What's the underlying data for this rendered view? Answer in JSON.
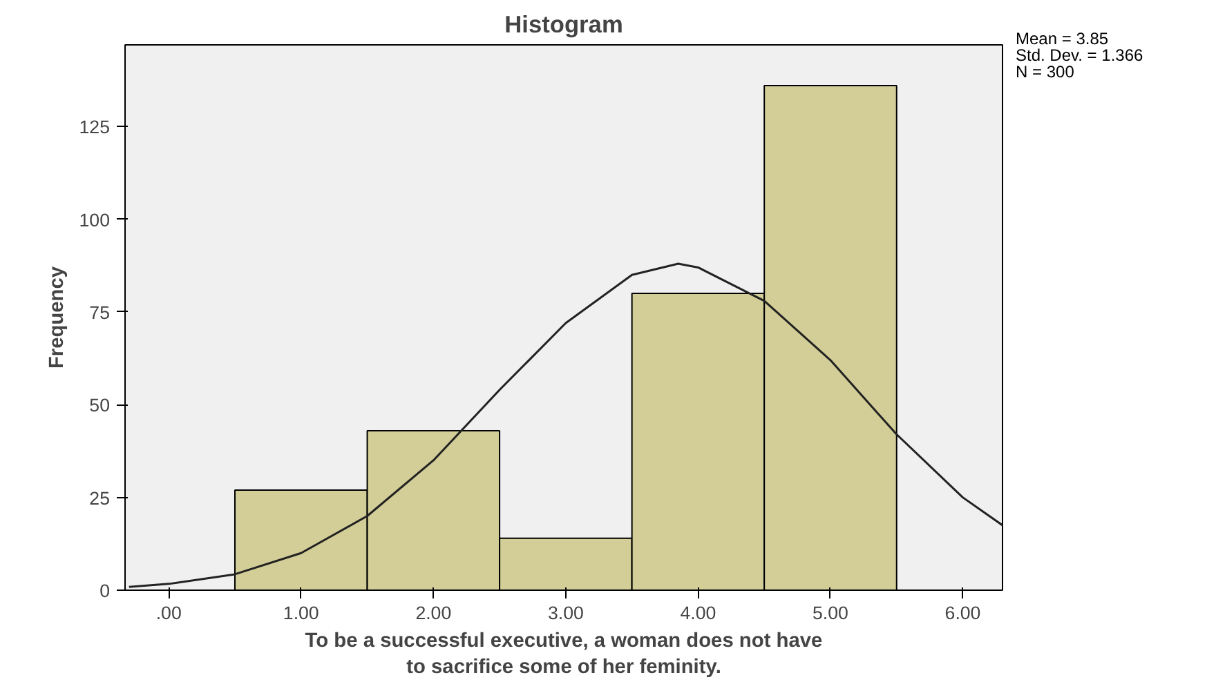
{
  "chart_data": {
    "type": "histogram",
    "title": "Histogram",
    "xlabel": "To be a successful executive, a woman does not have to sacrifice some of her feminity.",
    "ylabel": "Frequency",
    "bins": [
      0.5,
      1.5,
      2.5,
      3.5,
      4.5,
      5.5
    ],
    "values": [
      27,
      43,
      14,
      80,
      136
    ],
    "color": "#d3ce97",
    "series": [
      {
        "type": "line",
        "color": "#222222",
        "x": [
          -0.3,
          0,
          0.5,
          1,
          1.5,
          2,
          2.5,
          3,
          3.5,
          3.85,
          4,
          4.5,
          5,
          5.5,
          6,
          6.3
        ],
        "values": [
          0.9,
          1.7,
          4.3,
          10,
          20,
          35,
          54,
          72,
          85,
          88,
          87,
          78,
          62,
          42,
          25,
          17.5
        ]
      }
    ],
    "xlim": [
      -0.33,
      6.3
    ],
    "ylim": [
      0,
      147
    ],
    "xticks": [
      {
        "value": 0,
        "label": ".00"
      },
      {
        "value": 1,
        "label": "1.00"
      },
      {
        "value": 2,
        "label": "2.00"
      },
      {
        "value": 3,
        "label": "3.00"
      },
      {
        "value": 4,
        "label": "4.00"
      },
      {
        "value": 5,
        "label": "5.00"
      },
      {
        "value": 6,
        "label": "6.00"
      }
    ],
    "yticks": [
      0,
      25,
      50,
      75,
      100,
      125
    ],
    "grid": false,
    "annotations": [
      "Mean = 3.85",
      "Std. Dev. = 1.366",
      "N = 300"
    ]
  }
}
